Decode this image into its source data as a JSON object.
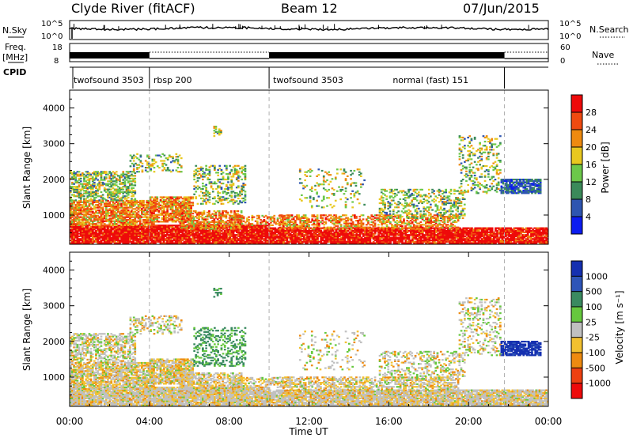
{
  "header": {
    "station": "Clyde River (fitACF)",
    "beam": "Beam 12",
    "date": "07/Jun/2015"
  },
  "chart_data": {
    "type": "heatmap",
    "time_axis": {
      "label": "Time UT",
      "ticks": [
        "00:00",
        "04:00",
        "08:00",
        "12:00",
        "16:00",
        "20:00",
        "00:00"
      ],
      "range_hours": [
        0,
        24
      ]
    },
    "noise_panel": {
      "left_label": "N.Sky",
      "right_label": "N.Search",
      "left_ticks": [
        "10^5",
        "10^0"
      ],
      "right_ticks": [
        "10^5",
        "10^0"
      ]
    },
    "freq_panel": {
      "left_label_1": "Freq.",
      "left_label_2": "[MHz]",
      "right_label": "Nave",
      "left_ticks": [
        "18",
        "8"
      ],
      "right_ticks": [
        "60",
        "0"
      ]
    },
    "cpid": {
      "label": "CPID",
      "segments": [
        {
          "name": "twofsound 3503",
          "start_h": 0.0,
          "end_h": 4.0
        },
        {
          "name": "rbsp 200",
          "start_h": 4.0,
          "end_h": 10.0
        },
        {
          "name": "twofsound 3503",
          "start_h": 10.0,
          "end_h": 16.0
        },
        {
          "name": "normal (fast) 151",
          "start_h": 16.0,
          "end_h": 21.8
        }
      ],
      "dashed_lines_h": [
        4.0,
        10.0,
        21.8
      ]
    },
    "power_panel": {
      "ylabel": "Slant Range [km]",
      "yticks": [
        1000,
        2000,
        3000,
        4000
      ],
      "ylim": [
        180,
        4500
      ],
      "colorbar": {
        "label": "Power [dB]",
        "ticks": [
          "4",
          "8",
          "12",
          "16",
          "20",
          "24",
          "28"
        ],
        "colors": [
          "#0c1cf0",
          "#2e55b0",
          "#3b8a5a",
          "#6cc84a",
          "#e8c820",
          "#ee8a10",
          "#f04a10",
          "#ee0a0a"
        ]
      }
    },
    "velocity_panel": {
      "ylabel": "Slant Range [km]",
      "yticks": [
        1000,
        2000,
        3000,
        4000
      ],
      "ylim": [
        180,
        4500
      ],
      "colorbar": {
        "label": "Velocity [m s⁻¹]",
        "ticks": [
          "1000",
          "500",
          "100",
          "25",
          "-25",
          "-100",
          "-500",
          "-1000"
        ],
        "colors": [
          "#1530b0",
          "#2e55b8",
          "#3a8a60",
          "#66c83e",
          "#c0c0c0",
          "#f2c030",
          "#ee8a10",
          "#ee4010",
          "#ee0a0a"
        ]
      }
    }
  }
}
